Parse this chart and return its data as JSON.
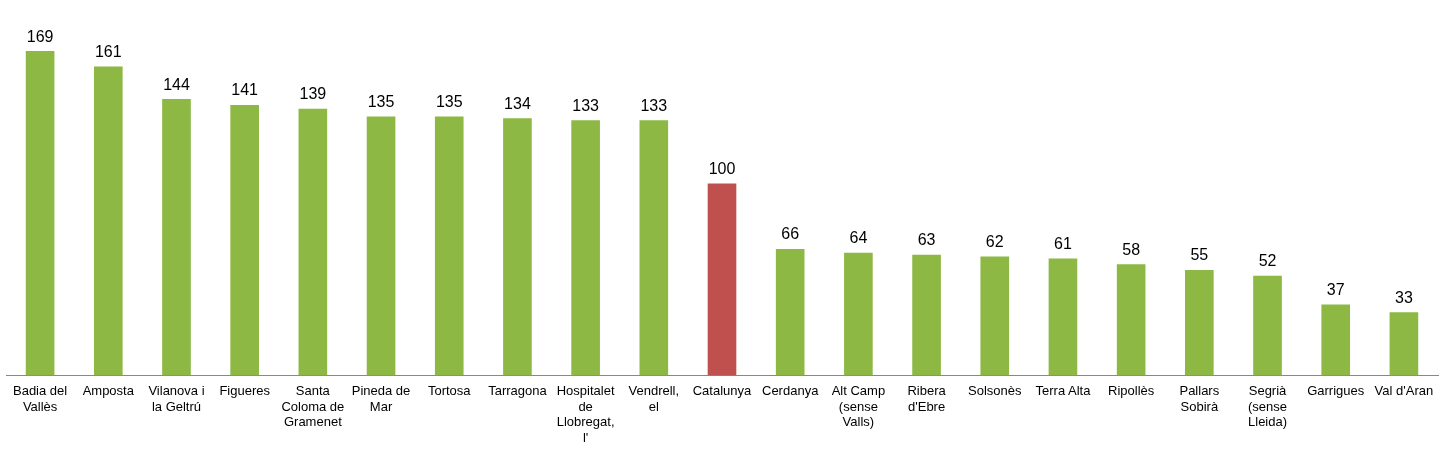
{
  "chart_data": {
    "type": "bar",
    "categories": [
      "Badia del Vallès",
      "Amposta",
      "Vilanova i la Geltrú",
      "Figueres",
      "Santa Coloma de Gramenet",
      "Pineda de Mar",
      "Tortosa",
      "Tarragona",
      "Hospitalet de Llobregat, l'",
      "Vendrell, el",
      "Catalunya",
      "Cerdanya",
      "Alt Camp (sense Valls)",
      "Ribera d'Ebre",
      "Solsonès",
      "Terra Alta",
      "Ripollès",
      "Pallars Sobirà",
      "Segrià (sense Lleida)",
      "Garrigues",
      "Val d'Aran"
    ],
    "values": [
      169,
      161,
      144,
      141,
      139,
      135,
      135,
      134,
      133,
      133,
      100,
      66,
      64,
      63,
      62,
      61,
      58,
      55,
      52,
      37,
      33
    ],
    "colors": [
      "#8db843",
      "#8db843",
      "#8db843",
      "#8db843",
      "#8db843",
      "#8db843",
      "#8db843",
      "#8db843",
      "#8db843",
      "#8db843",
      "#c0504d",
      "#8db843",
      "#8db843",
      "#8db843",
      "#8db843",
      "#8db843",
      "#8db843",
      "#8db843",
      "#8db843",
      "#8db843",
      "#8db843"
    ],
    "data_labels": true,
    "grid": false,
    "legend": false
  }
}
